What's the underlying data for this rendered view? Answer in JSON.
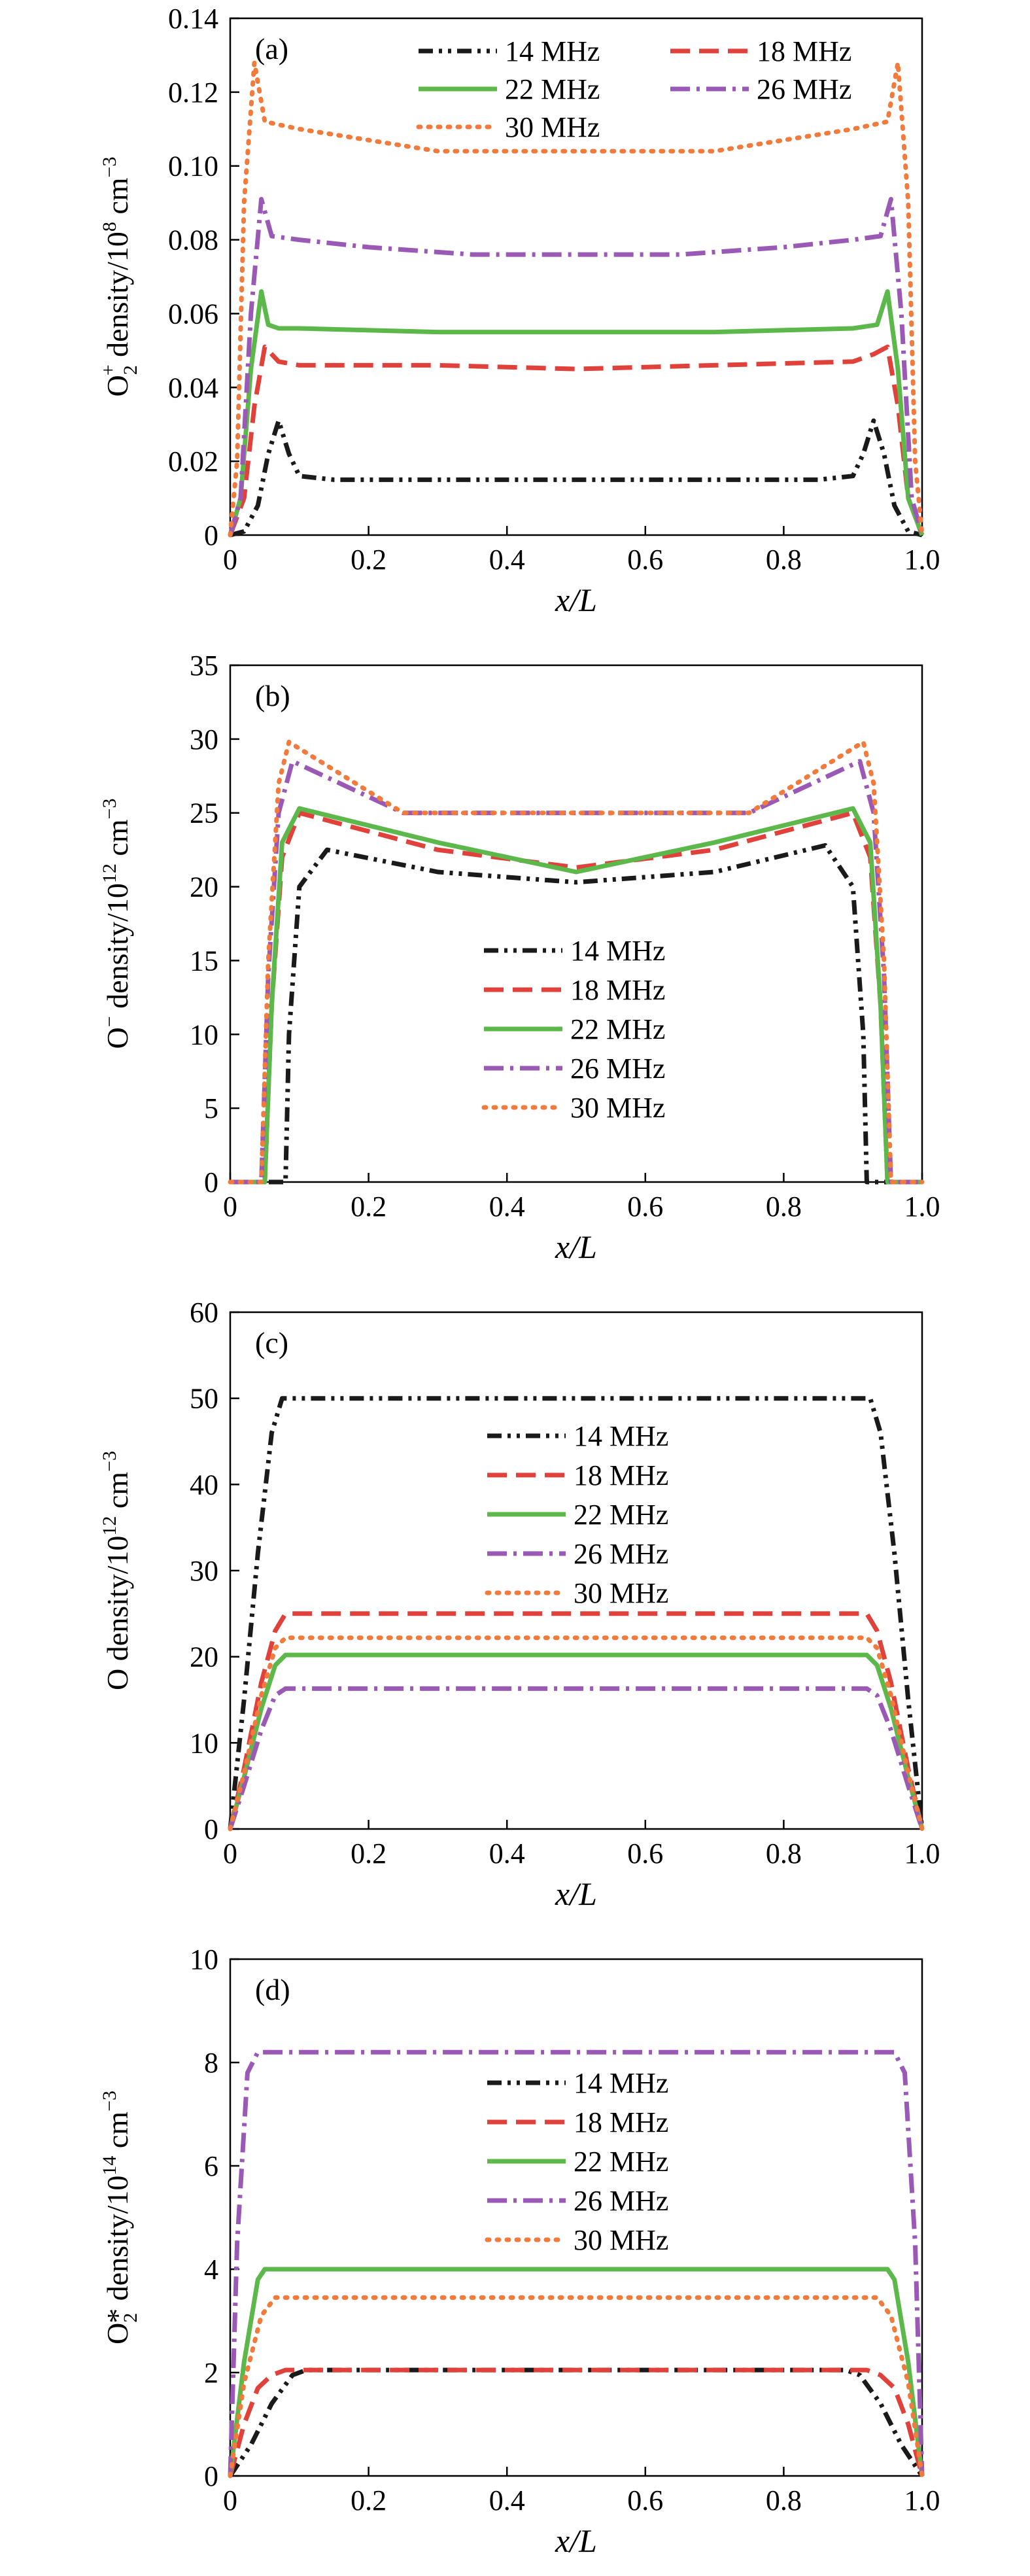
{
  "chart_data": [
    {
      "type": "line",
      "panel_label": "(a)",
      "ylabel": "O2+ density/10^8 cm^-3",
      "xlabel": "x/L",
      "xlim": [
        0,
        1.0
      ],
      "ylim": [
        0,
        0.14
      ],
      "xticks": [
        "0",
        "0.2",
        "0.4",
        "0.6",
        "0.8",
        "1.0"
      ],
      "yticks": [
        "0",
        "0.02",
        "0.04",
        "0.06",
        "0.08",
        "0.10",
        "0.12",
        "0.14"
      ],
      "legend_position": "top, two columns",
      "series": [
        {
          "name": "14 MHz",
          "color": "#1a1a1a",
          "style": "dash-dot-dot",
          "x": [
            0,
            0.02,
            0.04,
            0.055,
            0.07,
            0.085,
            0.1,
            0.15,
            0.3,
            0.5,
            0.7,
            0.85,
            0.9,
            0.915,
            0.93,
            0.945,
            0.96,
            0.98,
            1.0
          ],
          "y": [
            0,
            0.001,
            0.008,
            0.022,
            0.031,
            0.022,
            0.016,
            0.015,
            0.015,
            0.015,
            0.015,
            0.015,
            0.016,
            0.022,
            0.031,
            0.022,
            0.008,
            0.001,
            0
          ]
        },
        {
          "name": "18 MHz",
          "color": "#e0413a",
          "style": "dashed",
          "x": [
            0,
            0.02,
            0.035,
            0.05,
            0.07,
            0.1,
            0.3,
            0.5,
            0.7,
            0.9,
            0.93,
            0.95,
            0.965,
            0.98,
            1.0
          ],
          "y": [
            0,
            0.01,
            0.035,
            0.051,
            0.047,
            0.046,
            0.046,
            0.045,
            0.046,
            0.047,
            0.049,
            0.051,
            0.035,
            0.01,
            0
          ]
        },
        {
          "name": "22 MHz",
          "color": "#5cb84a",
          "style": "solid",
          "x": [
            0,
            0.015,
            0.03,
            0.045,
            0.055,
            0.07,
            0.1,
            0.3,
            0.5,
            0.7,
            0.9,
            0.935,
            0.95,
            0.965,
            0.98,
            1.0
          ],
          "y": [
            0,
            0.01,
            0.045,
            0.066,
            0.057,
            0.056,
            0.056,
            0.055,
            0.055,
            0.055,
            0.056,
            0.057,
            0.066,
            0.045,
            0.01,
            0
          ]
        },
        {
          "name": "26 MHz",
          "color": "#9b59b6",
          "style": "dash-dot",
          "x": [
            0,
            0.015,
            0.03,
            0.045,
            0.06,
            0.1,
            0.2,
            0.35,
            0.5,
            0.65,
            0.8,
            0.9,
            0.94,
            0.955,
            0.97,
            0.985,
            1.0
          ],
          "y": [
            0,
            0.01,
            0.06,
            0.091,
            0.081,
            0.08,
            0.078,
            0.076,
            0.076,
            0.076,
            0.078,
            0.08,
            0.081,
            0.091,
            0.06,
            0.01,
            0
          ]
        },
        {
          "name": "30 MHz",
          "color": "#f07b3c",
          "style": "dotted",
          "x": [
            0,
            0.01,
            0.02,
            0.035,
            0.05,
            0.1,
            0.2,
            0.3,
            0.5,
            0.7,
            0.8,
            0.9,
            0.95,
            0.965,
            0.98,
            0.99,
            1.0
          ],
          "y": [
            0,
            0.02,
            0.09,
            0.128,
            0.112,
            0.11,
            0.107,
            0.104,
            0.104,
            0.104,
            0.107,
            0.11,
            0.112,
            0.128,
            0.09,
            0.02,
            0
          ]
        }
      ]
    },
    {
      "type": "line",
      "panel_label": "(b)",
      "ylabel": "O− density/10^12 cm^-3",
      "xlabel": "x/L",
      "xlim": [
        0,
        1.0
      ],
      "ylim": [
        0,
        35
      ],
      "xticks": [
        "0",
        "0.2",
        "0.4",
        "0.6",
        "0.8",
        "1.0"
      ],
      "yticks": [
        "0",
        "5",
        "10",
        "15",
        "20",
        "25",
        "30",
        "35"
      ],
      "legend_position": "center",
      "series": [
        {
          "name": "14 MHz",
          "color": "#1a1a1a",
          "style": "dash-dot-dot",
          "x": [
            0,
            0.08,
            0.085,
            0.1,
            0.14,
            0.3,
            0.5,
            0.7,
            0.86,
            0.9,
            0.915,
            0.92,
            1.0
          ],
          "y": [
            0,
            0,
            10,
            20,
            22.5,
            21,
            20.3,
            21,
            22.8,
            20,
            10,
            0,
            0
          ]
        },
        {
          "name": "18 MHz",
          "color": "#e0413a",
          "style": "dashed",
          "x": [
            0,
            0.05,
            0.06,
            0.075,
            0.1,
            0.3,
            0.5,
            0.7,
            0.9,
            0.925,
            0.94,
            0.95,
            1.0
          ],
          "y": [
            0,
            0,
            12,
            22,
            25,
            22.5,
            21.3,
            22.5,
            25,
            22,
            12,
            0,
            0
          ]
        },
        {
          "name": "22 MHz",
          "color": "#5cb84a",
          "style": "solid",
          "x": [
            0,
            0.05,
            0.06,
            0.075,
            0.1,
            0.3,
            0.5,
            0.7,
            0.9,
            0.925,
            0.94,
            0.95,
            1.0
          ],
          "y": [
            0,
            0,
            12,
            23,
            25.3,
            23,
            21,
            23,
            25.3,
            23,
            12,
            0,
            0
          ]
        },
        {
          "name": "26 MHz",
          "color": "#9b59b6",
          "style": "dash-dot",
          "x": [
            0,
            0.045,
            0.055,
            0.07,
            0.09,
            0.25,
            0.5,
            0.75,
            0.91,
            0.93,
            0.945,
            0.955,
            1.0
          ],
          "y": [
            0,
            0,
            14,
            25,
            28.5,
            25,
            25,
            25,
            28.5,
            25,
            14,
            0,
            0
          ]
        },
        {
          "name": "30 MHz",
          "color": "#f07b3c",
          "style": "dotted",
          "x": [
            0,
            0.045,
            0.055,
            0.07,
            0.085,
            0.25,
            0.5,
            0.75,
            0.915,
            0.93,
            0.945,
            0.955,
            1.0
          ],
          "y": [
            0,
            0,
            15,
            27,
            29.8,
            25,
            25,
            25,
            29.8,
            27,
            15,
            0,
            0
          ]
        }
      ]
    },
    {
      "type": "line",
      "panel_label": "(c)",
      "ylabel": "O density/10^12 cm^-3",
      "xlabel": "x/L",
      "xlim": [
        0,
        1.0
      ],
      "ylim": [
        0,
        60
      ],
      "xticks": [
        "0",
        "0.2",
        "0.4",
        "0.6",
        "0.8",
        "1.0"
      ],
      "yticks": [
        "0",
        "10",
        "20",
        "30",
        "40",
        "50",
        "60"
      ],
      "legend_position": "center",
      "series": [
        {
          "name": "14 MHz",
          "color": "#1a1a1a",
          "style": "dash-dot-dot",
          "x": [
            0,
            0.02,
            0.04,
            0.06,
            0.075,
            0.1,
            0.5,
            0.9,
            0.925,
            0.94,
            0.96,
            0.98,
            1.0
          ],
          "y": [
            0,
            15,
            32,
            46,
            50,
            50,
            50,
            50,
            50,
            46,
            32,
            15,
            0
          ]
        },
        {
          "name": "18 MHz",
          "color": "#e0413a",
          "style": "dashed",
          "x": [
            0,
            0.02,
            0.045,
            0.065,
            0.08,
            0.5,
            0.92,
            0.935,
            0.955,
            0.98,
            1.0
          ],
          "y": [
            0,
            7,
            17,
            23,
            25,
            25,
            25,
            23,
            17,
            7,
            0
          ]
        },
        {
          "name": "22 MHz",
          "color": "#5cb84a",
          "style": "solid",
          "x": [
            0,
            0.02,
            0.045,
            0.065,
            0.08,
            0.5,
            0.92,
            0.935,
            0.955,
            0.98,
            1.0
          ],
          "y": [
            0,
            6,
            14,
            19,
            20.2,
            20.2,
            20.2,
            19,
            14,
            6,
            0
          ]
        },
        {
          "name": "26 MHz",
          "color": "#9b59b6",
          "style": "dash-dot",
          "x": [
            0,
            0.02,
            0.045,
            0.065,
            0.08,
            0.5,
            0.92,
            0.935,
            0.955,
            0.98,
            1.0
          ],
          "y": [
            0,
            5,
            11.5,
            15.5,
            16.3,
            16.3,
            16.3,
            15.5,
            11.5,
            5,
            0
          ]
        },
        {
          "name": "30 MHz",
          "color": "#f07b3c",
          "style": "dotted",
          "x": [
            0,
            0.02,
            0.045,
            0.065,
            0.08,
            0.5,
            0.92,
            0.935,
            0.955,
            0.98,
            1.0
          ],
          "y": [
            0,
            6.5,
            15.5,
            21,
            22.2,
            22.2,
            22.2,
            21,
            15.5,
            6.5,
            0
          ]
        }
      ]
    },
    {
      "type": "line",
      "panel_label": "(d)",
      "ylabel": "O2* density/10^14 cm^-3",
      "xlabel": "x/L",
      "xlim": [
        0,
        1.0
      ],
      "ylim": [
        0,
        10
      ],
      "xticks": [
        "0",
        "0.2",
        "0.4",
        "0.6",
        "0.8",
        "1.0"
      ],
      "yticks": [
        "0",
        "2",
        "4",
        "6",
        "8",
        "10"
      ],
      "legend_position": "center",
      "series": [
        {
          "name": "14 MHz",
          "color": "#1a1a1a",
          "style": "dash-dot-dot",
          "x": [
            0,
            0.03,
            0.06,
            0.09,
            0.11,
            0.5,
            0.89,
            0.91,
            0.94,
            0.97,
            1.0
          ],
          "y": [
            0,
            0.6,
            1.4,
            1.95,
            2.05,
            2.05,
            2.05,
            1.95,
            1.4,
            0.6,
            0
          ]
        },
        {
          "name": "18 MHz",
          "color": "#e0413a",
          "style": "dashed",
          "x": [
            0,
            0.02,
            0.04,
            0.06,
            0.08,
            0.5,
            0.92,
            0.94,
            0.96,
            0.98,
            1.0
          ],
          "y": [
            0,
            1.0,
            1.7,
            1.95,
            2.05,
            2.05,
            2.05,
            1.95,
            1.7,
            1.0,
            0
          ]
        },
        {
          "name": "22 MHz",
          "color": "#5cb84a",
          "style": "solid",
          "x": [
            0,
            0.02,
            0.04,
            0.05,
            0.5,
            0.95,
            0.96,
            0.98,
            1.0
          ],
          "y": [
            0,
            2.2,
            3.8,
            4.0,
            4.0,
            4.0,
            3.8,
            2.2,
            0
          ]
        },
        {
          "name": "26 MHz",
          "color": "#9b59b6",
          "style": "dash-dot",
          "x": [
            0,
            0.01,
            0.025,
            0.04,
            0.5,
            0.96,
            0.975,
            0.99,
            1.0
          ],
          "y": [
            0,
            4.5,
            7.8,
            8.2,
            8.2,
            8.2,
            7.8,
            4.5,
            0
          ]
        },
        {
          "name": "30 MHz",
          "color": "#f07b3c",
          "style": "dotted",
          "x": [
            0,
            0.02,
            0.045,
            0.065,
            0.5,
            0.935,
            0.955,
            0.98,
            1.0
          ],
          "y": [
            0,
            1.8,
            3.1,
            3.45,
            3.45,
            3.45,
            3.1,
            1.8,
            0
          ]
        }
      ]
    }
  ]
}
